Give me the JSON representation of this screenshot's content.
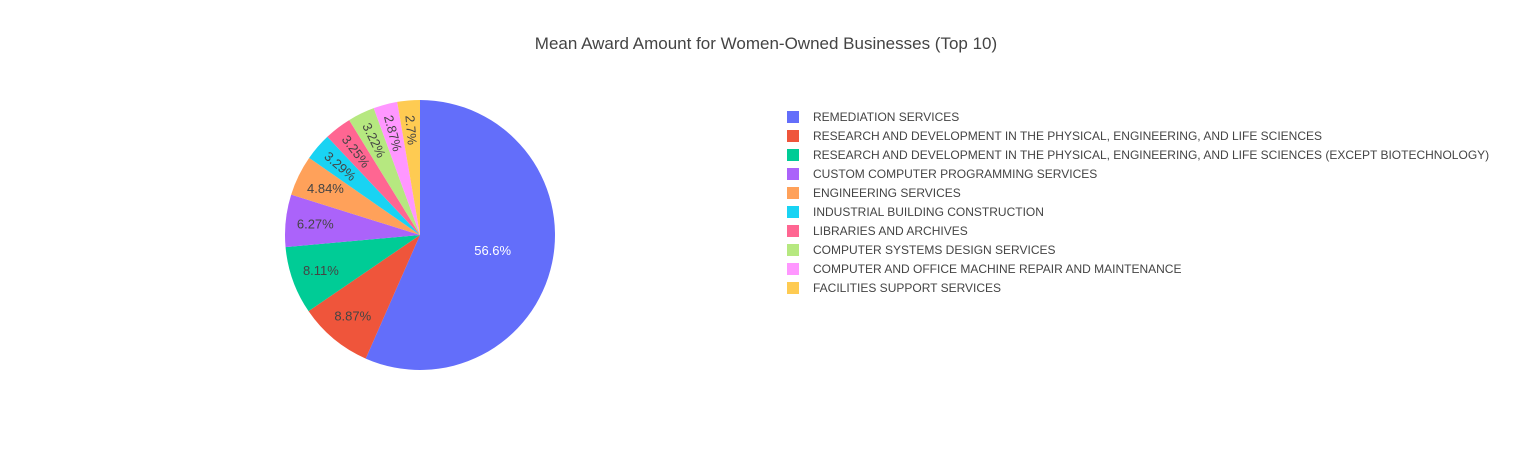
{
  "chart_data": {
    "type": "pie",
    "title": "Mean Award Amount for Women-Owned Businesses (Top 10)",
    "legend_position": "right",
    "labels": [
      "REMEDIATION SERVICES",
      "RESEARCH AND DEVELOPMENT IN THE PHYSICAL, ENGINEERING, AND LIFE SCIENCES",
      "RESEARCH AND DEVELOPMENT IN THE PHYSICAL, ENGINEERING, AND LIFE SCIENCES (EXCEPT BIOTECHNOLOGY)",
      "CUSTOM COMPUTER PROGRAMMING SERVICES",
      "ENGINEERING SERVICES",
      "INDUSTRIAL BUILDING CONSTRUCTION",
      "LIBRARIES AND ARCHIVES",
      "COMPUTER SYSTEMS DESIGN SERVICES",
      "COMPUTER AND OFFICE MACHINE REPAIR AND MAINTENANCE",
      "FACILITIES SUPPORT SERVICES"
    ],
    "values": [
      56.6,
      8.87,
      8.11,
      6.27,
      4.84,
      3.29,
      3.25,
      3.22,
      2.87,
      2.7
    ],
    "percent_labels": [
      "56.6%",
      "8.87%",
      "8.11%",
      "6.27%",
      "4.84%",
      "3.29%",
      "3.25%",
      "3.22%",
      "2.87%",
      "2.7%"
    ],
    "colors": [
      "#636efa",
      "#EF553B",
      "#00cc96",
      "#ab63fa",
      "#FFA15A",
      "#19d3f3",
      "#FF6692",
      "#B6E880",
      "#FF97FF",
      "#FECB52"
    ]
  }
}
